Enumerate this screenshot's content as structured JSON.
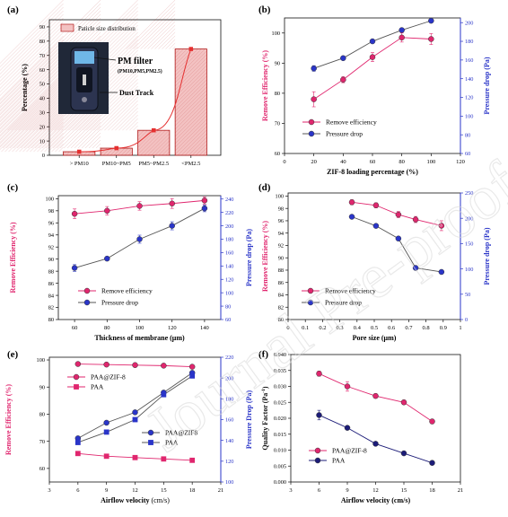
{
  "colors": {
    "pink": "#e0266e",
    "blue": "#2a35c8",
    "navy": "#1c1c78",
    "gray": "#555555",
    "bar_fill": "#f3c2c2",
    "bar_edge": "#b01818",
    "fit_line": "#e53030",
    "watermark": "#d8d8d8"
  },
  "watermark": "Journal Pre-proofs",
  "chart_data": [
    {
      "id": "a",
      "panel_label": "(a)",
      "type": "bar",
      "categories": [
        "> PM10",
        "PM10~PM5",
        "PM5~PM2.5",
        "<PM2.5"
      ],
      "values": [
        2.5,
        5,
        17.5,
        74.5
      ],
      "ylabel": "Percentage (%)",
      "xlabel": "",
      "ylim": [
        0,
        95
      ],
      "yticks": [
        0,
        10,
        20,
        30,
        40,
        50,
        60,
        70,
        80,
        90
      ],
      "legend": "Paticle size distribution",
      "inset_icons": [
        "pm-filter-device-photo"
      ],
      "inset_labels": {
        "pm_filter": "PM filter",
        "pm_filter_sub": "(PM10,PM5,PM2.5)",
        "dust_track": "Dust Track"
      }
    },
    {
      "id": "b",
      "panel_label": "(b)",
      "type": "line",
      "x": [
        20,
        40,
        60,
        80,
        100
      ],
      "xlim": [
        0,
        120
      ],
      "xticks": [
        0,
        20,
        40,
        60,
        80,
        100,
        120
      ],
      "xlabel": "ZIF-8 loading percentage (%)",
      "ylabel": "Remove Efficiency (%)",
      "ylim": [
        60,
        105
      ],
      "yticks": [
        60,
        70,
        80,
        90,
        100
      ],
      "ylabel2": "Pressure drop (Pa)",
      "ylim2": [
        60,
        205
      ],
      "yticks2": [
        60,
        80,
        100,
        120,
        140,
        160,
        180,
        200
      ],
      "series": [
        {
          "name": "Remove efficiency",
          "axis": "left",
          "color": "pink",
          "marker": "circle",
          "values": [
            78,
            84.5,
            92,
            98.5,
            98
          ],
          "err": [
            2.5,
            1,
            1.5,
            1.5,
            1.8
          ]
        },
        {
          "name": "Pressure drop",
          "axis": "right",
          "color": "blue",
          "marker": "circle",
          "values": [
            151,
            162,
            180,
            192,
            202
          ],
          "err": [
            3,
            2,
            2,
            2,
            2
          ]
        }
      ]
    },
    {
      "id": "c",
      "panel_label": "(c)",
      "type": "line",
      "x": [
        60,
        80,
        100,
        120,
        140
      ],
      "xlim": [
        50,
        150
      ],
      "xticks": [
        60,
        80,
        100,
        120,
        140
      ],
      "xlabel": "Thickness of membrane (μm)",
      "ylabel": "Remove Efficiency (%)",
      "ylim": [
        80,
        100.5
      ],
      "yticks": [
        80,
        82,
        84,
        86,
        88,
        90,
        92,
        94,
        96,
        98,
        100
      ],
      "ylabel2": "Pressure drop (Pa)",
      "ylim2": [
        60,
        245
      ],
      "yticks2": [
        60,
        80,
        100,
        120,
        140,
        160,
        180,
        200,
        220,
        240
      ],
      "series": [
        {
          "name": "Remove efficiency",
          "axis": "left",
          "color": "pink",
          "marker": "circle",
          "values": [
            97.5,
            98,
            98.8,
            99.2,
            99.7
          ],
          "err": [
            0.8,
            0.7,
            0.7,
            0.8,
            0.6
          ]
        },
        {
          "name": "Pressure drop",
          "axis": "right",
          "color": "blue",
          "marker": "circle",
          "values": [
            137,
            151,
            180,
            200,
            226
          ],
          "err": [
            5,
            3,
            6,
            6,
            5
          ]
        }
      ]
    },
    {
      "id": "d",
      "panel_label": "(d)",
      "type": "line",
      "x": [
        0.37,
        0.51,
        0.64,
        0.74,
        0.89
      ],
      "xlim": [
        0.0,
        1.0
      ],
      "xticks": [
        0.0,
        0.1,
        0.2,
        0.3,
        0.4,
        0.5,
        0.6,
        0.7,
        0.8,
        0.9,
        1.0
      ],
      "xlabel": "Pore size (μm)",
      "ylabel": "Remove Efficiency (%)",
      "ylim": [
        80,
        100.5
      ],
      "yticks": [
        80,
        82,
        84,
        86,
        88,
        90,
        92,
        94,
        96,
        98,
        100
      ],
      "ylabel2": "Pressure drop (Pa)",
      "ylim2": [
        0,
        250
      ],
      "yticks2": [
        0,
        50,
        100,
        150,
        200,
        250
      ],
      "series": [
        {
          "name": "Remove efficiency",
          "axis": "left",
          "color": "pink",
          "marker": "circle",
          "values": [
            99,
            98.5,
            97,
            96.2,
            95.2
          ],
          "err": [
            0.4,
            0.4,
            0.5,
            0.5,
            0.8
          ]
        },
        {
          "name": "Pressure drop",
          "axis": "right",
          "color": "blue",
          "marker": "circle",
          "values": [
            203,
            185,
            160,
            102,
            94
          ],
          "err": [
            3,
            3,
            3,
            3,
            3
          ]
        }
      ]
    },
    {
      "id": "e",
      "panel_label": "(e)",
      "type": "line",
      "x": [
        6,
        9,
        12,
        15,
        18
      ],
      "xlim": [
        3,
        21
      ],
      "xticks": [
        3,
        6,
        9,
        12,
        15,
        18,
        21
      ],
      "xlabel": "Airflow velocity",
      "xlabel_unit": " (cm/s)",
      "ylabel": "Remove Efficiency (%)",
      "ylim": [
        55,
        101
      ],
      "yticks": [
        60,
        70,
        80,
        90,
        100
      ],
      "ylabel2": "Pressure Drop (Pa)",
      "ylim2": [
        100,
        220
      ],
      "yticks2": [
        100,
        120,
        140,
        160,
        180,
        200,
        220
      ],
      "legend_groups": [
        {
          "names": [
            "PAA@ZIF-8",
            "PAA"
          ],
          "near": "top-left"
        },
        {
          "names": [
            "PAA@ZIF8",
            "PAA"
          ],
          "near": "middle-right"
        }
      ],
      "series": [
        {
          "name": "PAA@ZIF-8",
          "axis": "left",
          "color": "pink",
          "marker": "circle",
          "values": [
            98.5,
            98.3,
            98.1,
            97.9,
            97.5
          ],
          "err": [
            0.2,
            0.2,
            0.2,
            0.2,
            0.2
          ]
        },
        {
          "name": "PAA",
          "axis": "left",
          "color": "pink",
          "marker": "square",
          "values": [
            65.5,
            64.5,
            64,
            63.5,
            63
          ],
          "err": [
            0.2,
            0.2,
            0.2,
            0.2,
            0.2
          ]
        },
        {
          "name": "PAA@ZIF8",
          "axis": "right",
          "color": "blue",
          "marker": "circle",
          "values": [
            142,
            157,
            167,
            186,
            205
          ],
          "err": [
            1,
            1,
            1,
            1,
            1
          ]
        },
        {
          "name": "PAA",
          "axis": "right",
          "color": "blue",
          "marker": "square",
          "values": [
            138,
            148,
            160,
            184,
            202
          ],
          "err": [
            1,
            1,
            1,
            1,
            1
          ]
        }
      ]
    },
    {
      "id": "f",
      "panel_label": "(f)",
      "type": "line",
      "x": [
        6,
        9,
        12,
        15,
        18
      ],
      "xlim": [
        3,
        21
      ],
      "xticks": [
        3,
        6,
        9,
        12,
        15,
        18,
        21
      ],
      "xlabel": "Airflow velocity (cm/s)",
      "ylabel": "Quality Factor (Pa",
      "ylabel_sup": "-1",
      "ylabel_end": ")",
      "ylim": [
        0.0,
        0.04
      ],
      "yticks": [
        0.0,
        0.005,
        0.01,
        0.015,
        0.02,
        0.025,
        0.03,
        0.035,
        0.04
      ],
      "ytick_labels": [
        "0.000",
        "0.005",
        "0.010",
        "0.015",
        "0.020",
        "0.025",
        "0.030",
        "0.035",
        "0.040"
      ],
      "legend_groups": [
        {
          "names": [
            "PAA@ZIF-8",
            "PAA"
          ],
          "near": "bottom-left"
        }
      ],
      "series": [
        {
          "name": "PAA@ZIF-8",
          "axis": "left",
          "color": "pink",
          "marker": "circle",
          "values": [
            0.034,
            0.03,
            0.027,
            0.025,
            0.019
          ],
          "err": [
            0.0008,
            0.0015,
            0.0007,
            0.0007,
            0.0007
          ]
        },
        {
          "name": "PAA",
          "axis": "left",
          "color": "navy",
          "marker": "circle",
          "values": [
            0.021,
            0.017,
            0.012,
            0.009,
            0.006
          ],
          "err": [
            0.0015,
            0.0006,
            0.0004,
            0.0004,
            0.0006
          ]
        }
      ]
    }
  ]
}
